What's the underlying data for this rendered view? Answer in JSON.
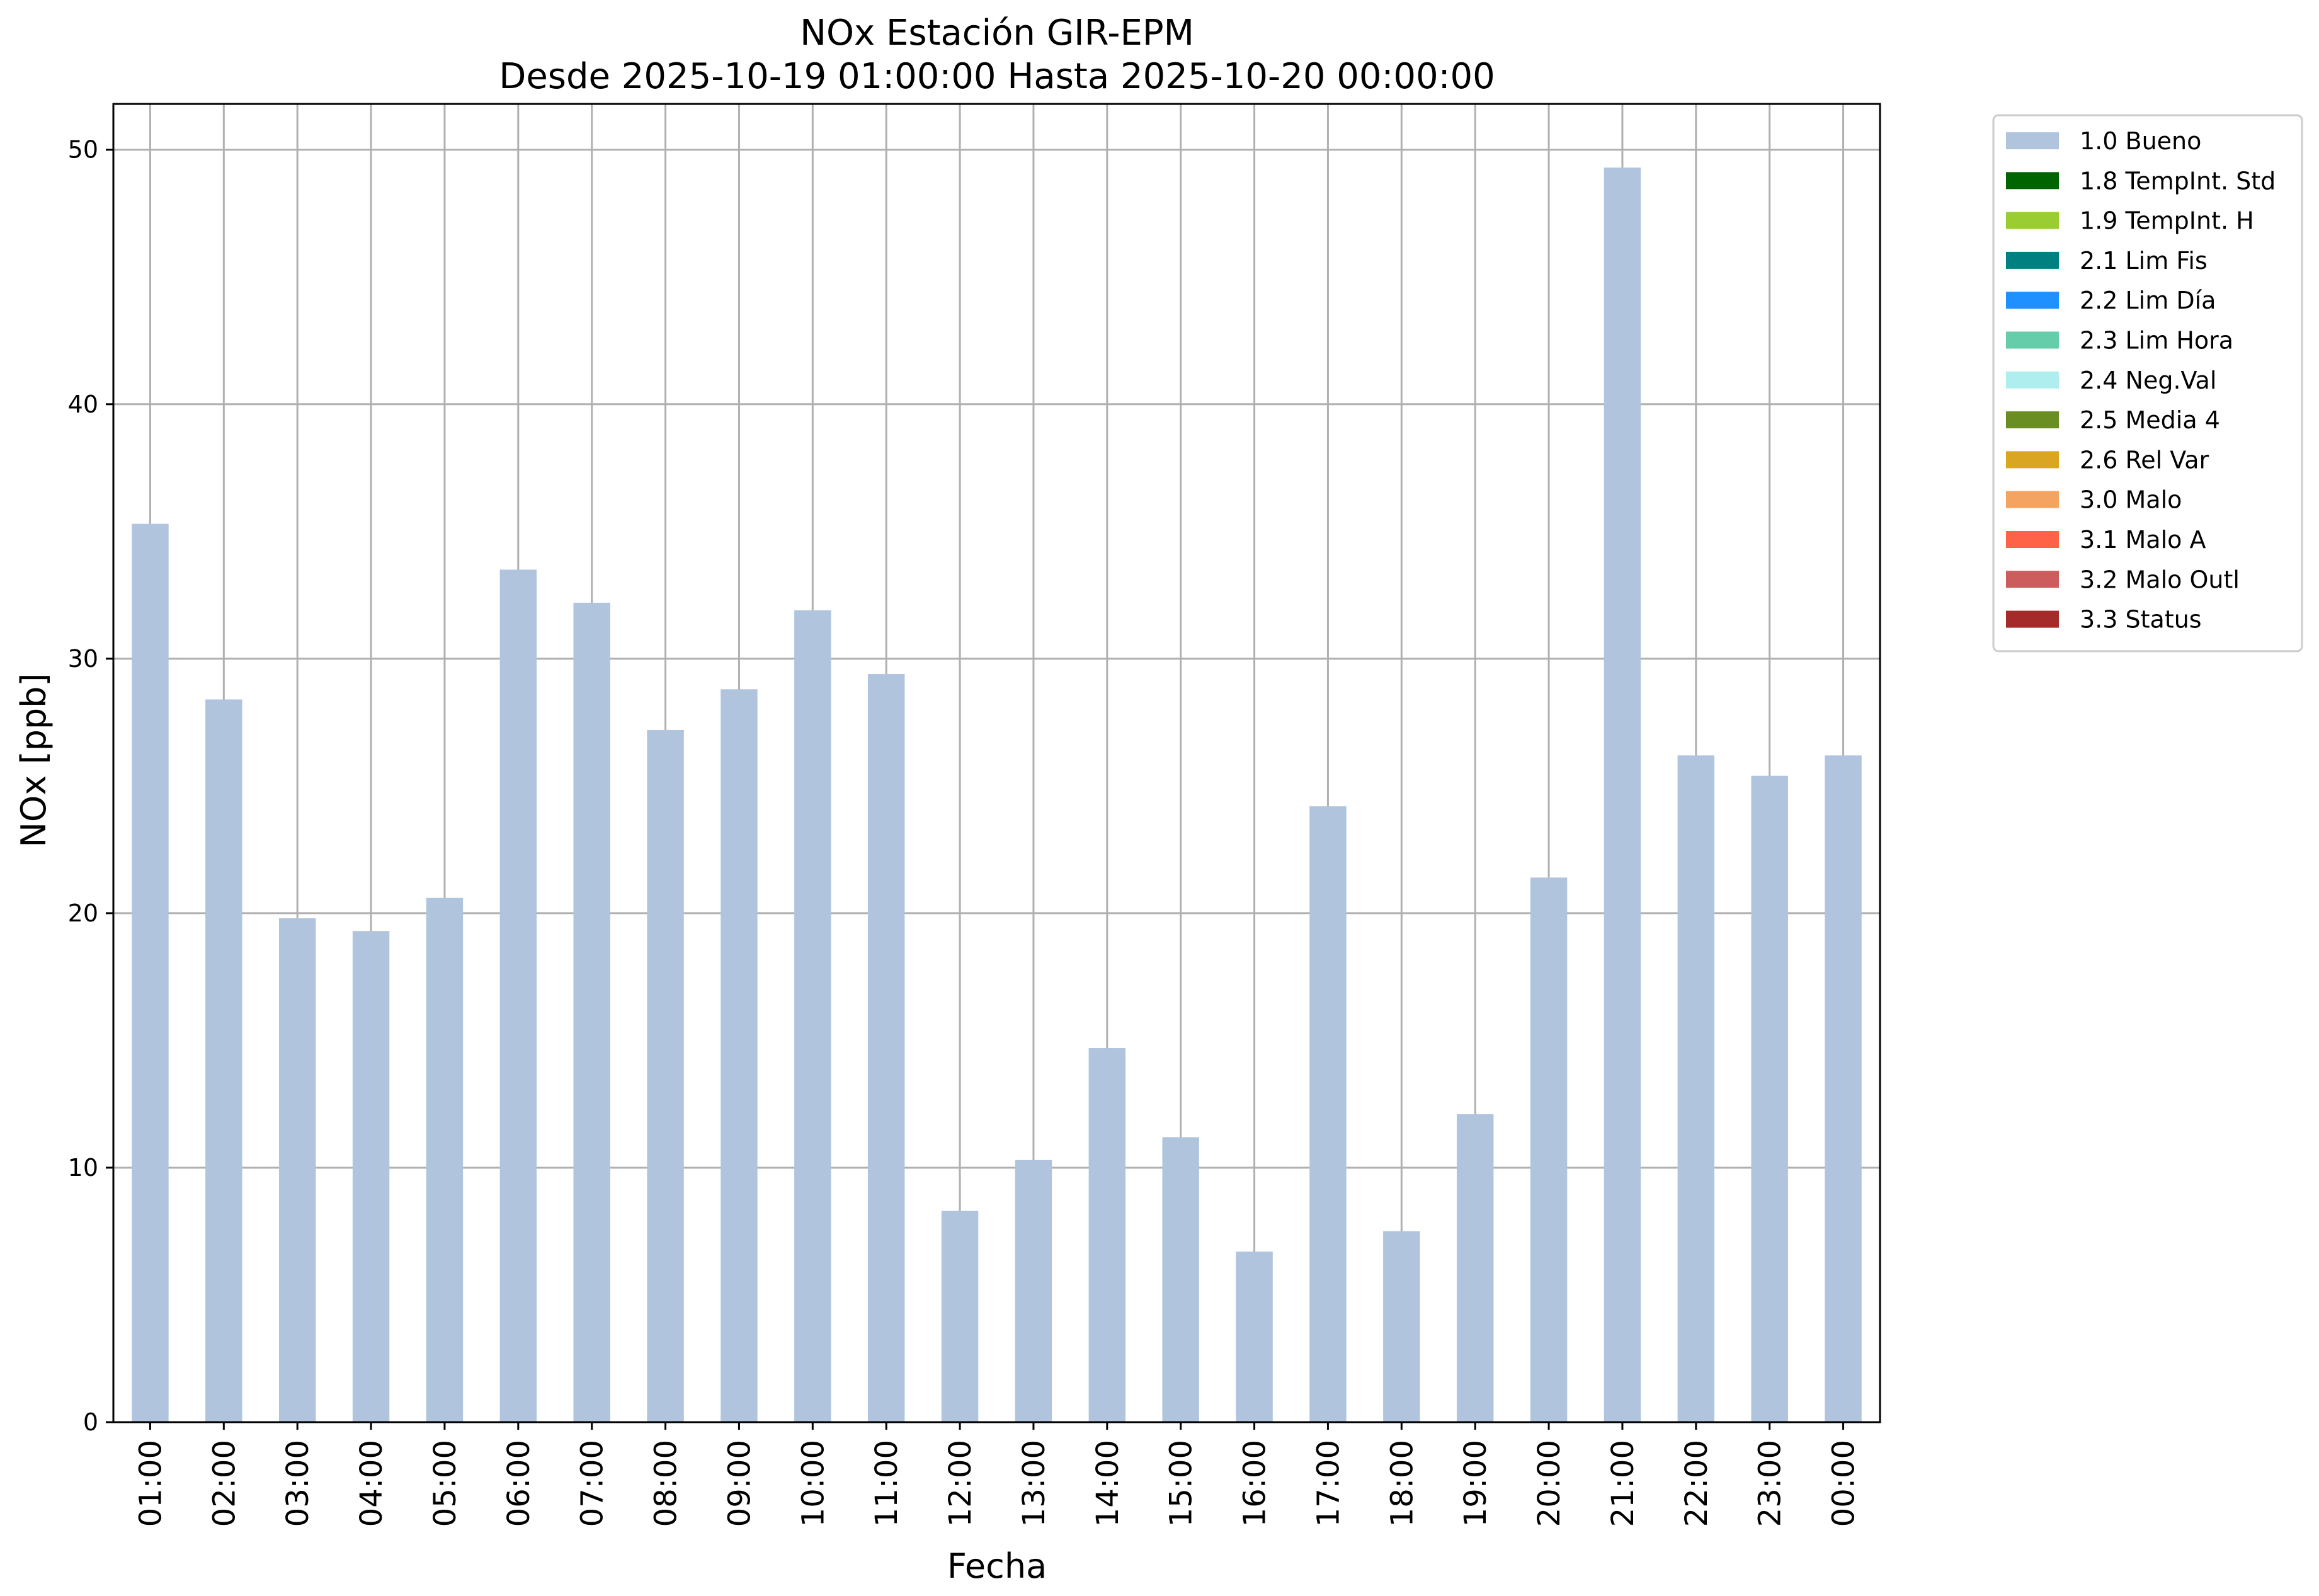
{
  "chart_data": {
    "type": "bar",
    "title": "NOx Estación GIR-EPM",
    "subtitle": "Desde 2025-10-19 01:00:00 Hasta 2025-10-20 00:00:00",
    "xlabel": "Fecha",
    "ylabel": "NOx [ppb]",
    "ylim": [
      0,
      51.8
    ],
    "yticks": [
      0,
      10,
      20,
      30,
      40,
      50
    ],
    "grid": true,
    "legend_position": "outside-top-right",
    "categories": [
      "01:00",
      "02:00",
      "03:00",
      "04:00",
      "05:00",
      "06:00",
      "07:00",
      "08:00",
      "09:00",
      "10:00",
      "11:00",
      "12:00",
      "13:00",
      "14:00",
      "15:00",
      "16:00",
      "17:00",
      "18:00",
      "19:00",
      "20:00",
      "21:00",
      "22:00",
      "23:00",
      "00:00"
    ],
    "series": [
      {
        "name": "1.0 Bueno",
        "color": "#b0c4de",
        "values": [
          35.3,
          28.4,
          19.8,
          19.3,
          20.6,
          33.5,
          32.2,
          27.2,
          28.8,
          31.9,
          29.4,
          8.3,
          10.3,
          14.7,
          11.2,
          6.7,
          24.2,
          7.5,
          12.1,
          21.4,
          49.3,
          26.2,
          25.4,
          26.2
        ]
      }
    ],
    "legend": [
      {
        "label": "1.0 Bueno",
        "color": "#b0c4de"
      },
      {
        "label": "1.8 TempInt. Std",
        "color": "#006400"
      },
      {
        "label": "1.9 TempInt. H",
        "color": "#9acd32"
      },
      {
        "label": "2.1 Lim Fis",
        "color": "#008080"
      },
      {
        "label": "2.2 Lim Día",
        "color": "#1e90ff"
      },
      {
        "label": "2.3 Lim Hora",
        "color": "#66cdaa"
      },
      {
        "label": "2.4 Neg.Val",
        "color": "#afeeee"
      },
      {
        "label": "2.5 Media 4",
        "color": "#6b8e23"
      },
      {
        "label": "2.6 Rel Var",
        "color": "#daa520"
      },
      {
        "label": "3.0 Malo",
        "color": "#f4a460"
      },
      {
        "label": "3.1 Malo A",
        "color": "#ff6347"
      },
      {
        "label": "3.2 Malo Outl",
        "color": "#cd5c5c"
      },
      {
        "label": "3.3 Status",
        "color": "#a52a2a"
      }
    ]
  }
}
